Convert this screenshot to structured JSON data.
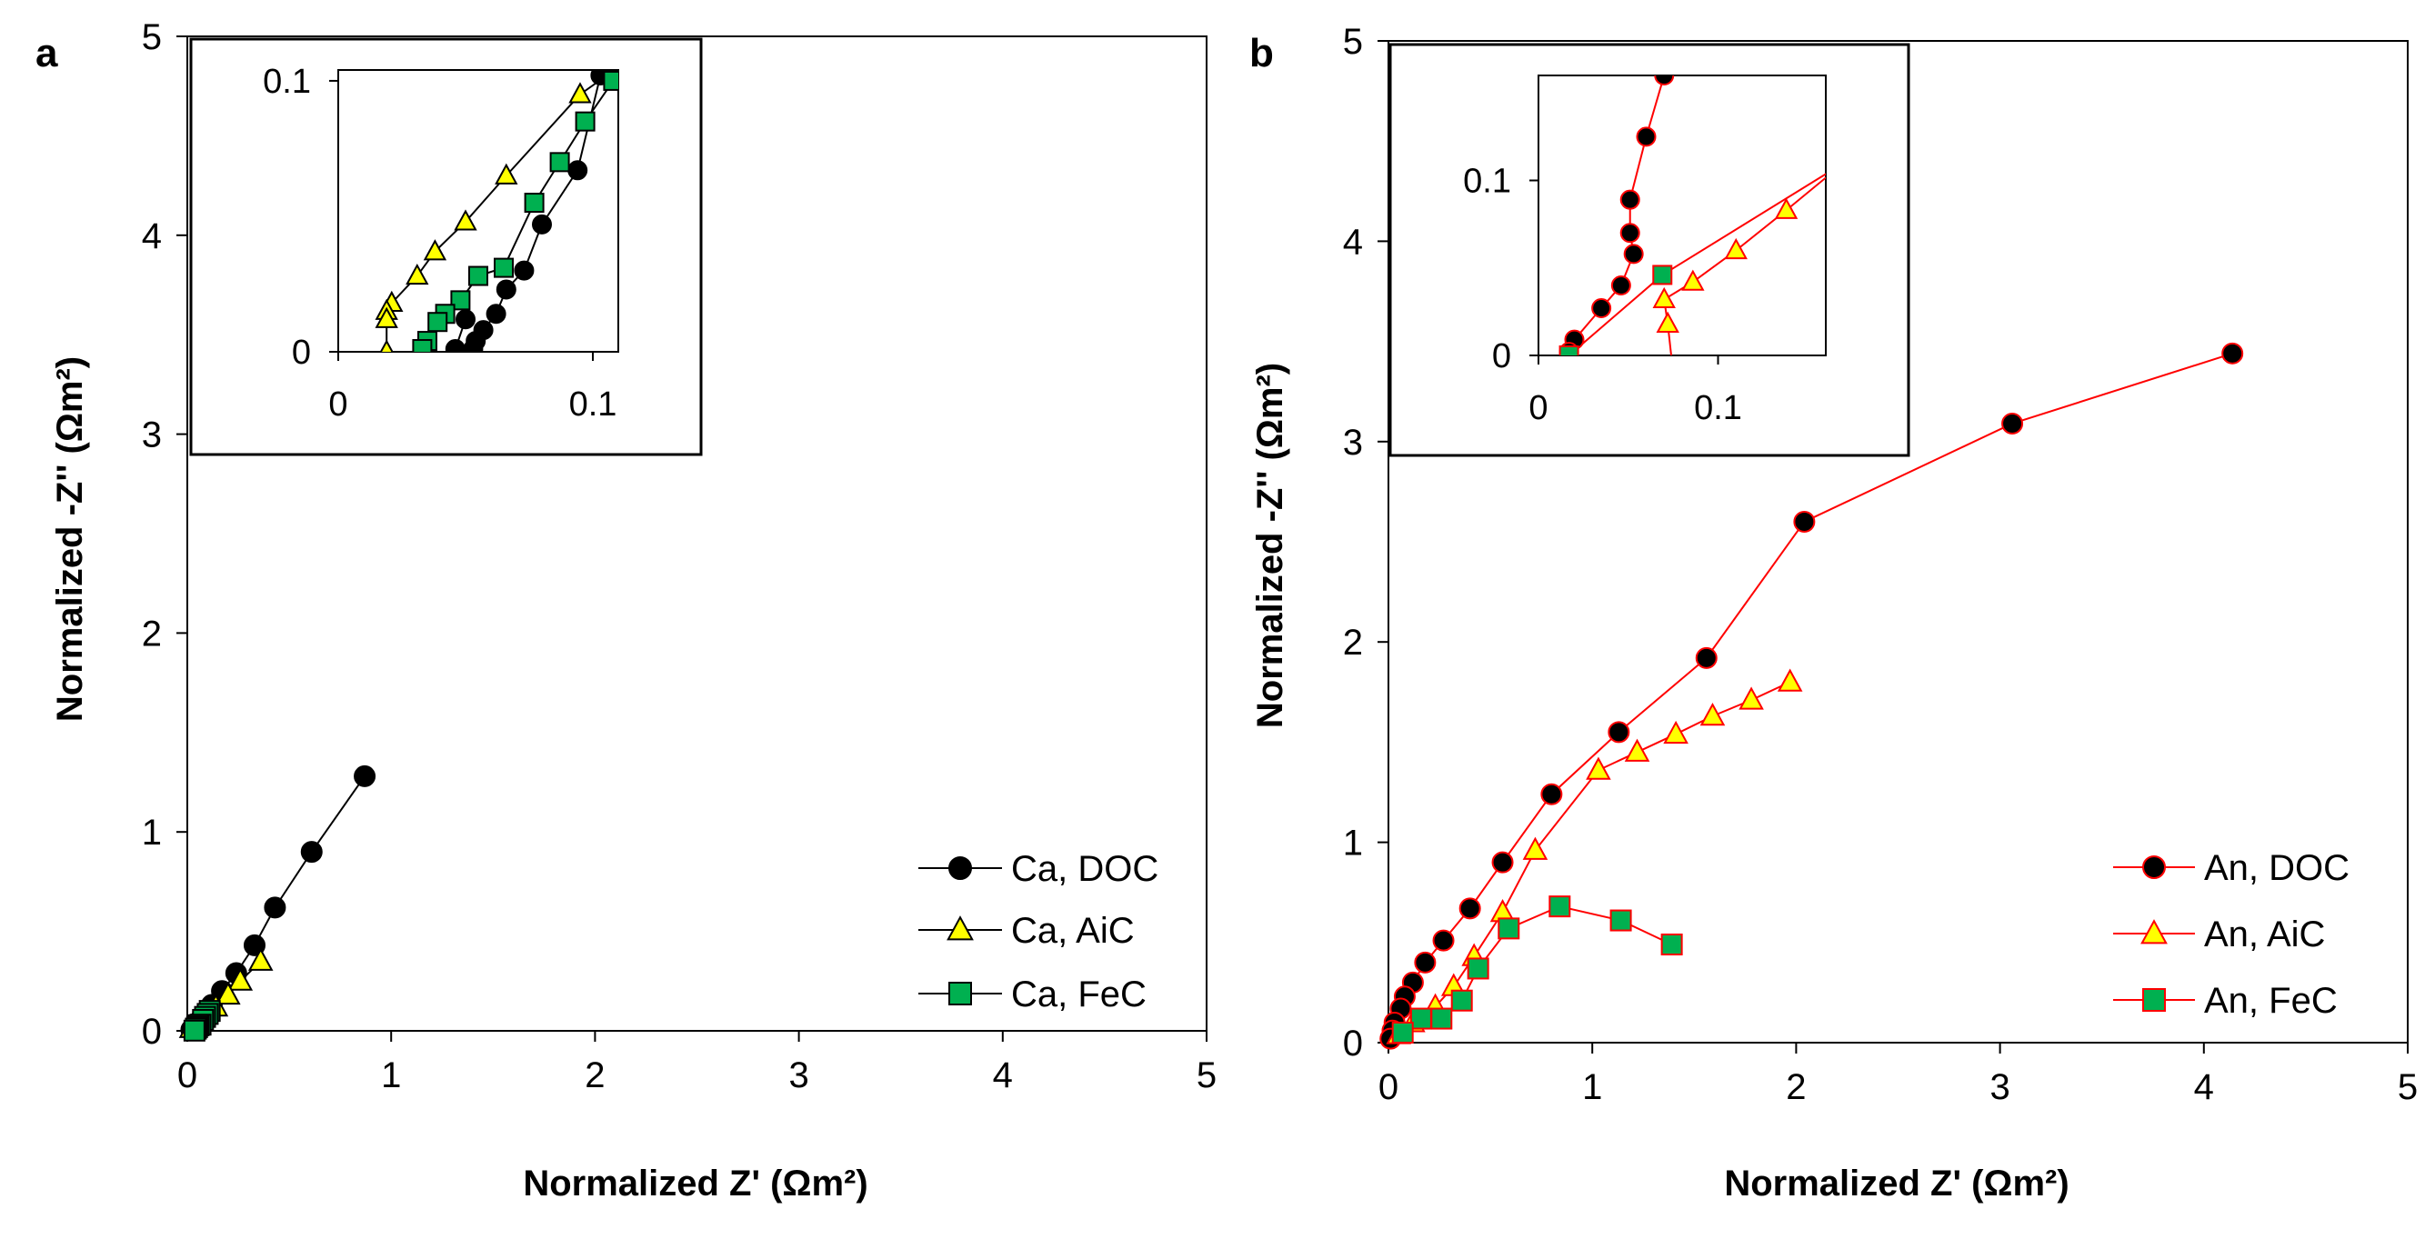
{
  "colors": {
    "black": "#000000",
    "red": "#ff0000",
    "yellow": "#ffff00",
    "green": "#00b050"
  },
  "chart_data": [
    {
      "type": "scatter",
      "panel_label": "a",
      "xlabel": "Normalized Z' (Ωm²)",
      "ylabel": "Normalized -Z'' (Ωm²)",
      "xlim": [
        0,
        5
      ],
      "ylim": [
        0,
        5
      ],
      "xticks": [
        "0",
        "1",
        "2",
        "3",
        "4",
        "5"
      ],
      "yticks": [
        "0",
        "1",
        "2",
        "3",
        "4",
        "5"
      ],
      "legend_position": "bottom-right",
      "series": [
        {
          "name": "Ca, DOC",
          "marker": "circle",
          "line_color": "#000000",
          "fill": "#000000",
          "edge": "#000000",
          "x": [
            0.87,
            0.61,
            0.43,
            0.33,
            0.24,
            0.17,
            0.12,
            0.09,
            0.06,
            0.04,
            0.02
          ],
          "y": [
            1.28,
            0.9,
            0.62,
            0.43,
            0.29,
            0.2,
            0.13,
            0.09,
            0.05,
            0.02,
            0.005
          ]
        },
        {
          "name": "Ca, AiC",
          "marker": "triangle",
          "line_color": "#000000",
          "fill": "#ffff00",
          "edge": "#000000",
          "x": [
            0.36,
            0.26,
            0.2,
            0.14,
            0.1,
            0.07,
            0.05,
            0.03,
            0.02
          ],
          "y": [
            0.35,
            0.25,
            0.18,
            0.12,
            0.095,
            0.065,
            0.04,
            0.02,
            0.012
          ]
        },
        {
          "name": "Ca, FeC",
          "marker": "square",
          "line_color": "#000000",
          "fill": "#00b050",
          "edge": "#000000",
          "x": [
            0.11,
            0.1,
            0.087,
            0.077,
            0.065,
            0.055,
            0.048,
            0.042,
            0.035
          ],
          "y": [
            0.1,
            0.085,
            0.07,
            0.055,
            0.031,
            0.028,
            0.019,
            0.011,
            0.001
          ]
        }
      ],
      "inset": {
        "xlim": [
          0,
          0.11
        ],
        "ylim": [
          0,
          0.104
        ],
        "xticks": [
          "0",
          "0.1"
        ],
        "yticks": [
          "0",
          "0.1"
        ],
        "series": [
          {
            "name": "Ca, DOC",
            "x": [
              0.103,
              0.094,
              0.08,
              0.073,
              0.066,
              0.062,
              0.057,
              0.054,
              0.053,
              0.046,
              0.05
            ],
            "y": [
              0.102,
              0.067,
              0.047,
              0.03,
              0.023,
              0.014,
              0.008,
              0.004,
              0.001,
              0.001,
              0.012
            ]
          },
          {
            "name": "Ca, AiC",
            "x": [
              0.11,
              0.095,
              0.066,
              0.05,
              0.038,
              0.031,
              0.021,
              0.019,
              0.019,
              0.019
            ],
            "y": [
              0.105,
              0.095,
              0.065,
              0.048,
              0.037,
              0.028,
              0.018,
              0.015,
              0.012,
              0.0
            ]
          },
          {
            "name": "Ca, FeC",
            "x": [
              0.108,
              0.097,
              0.087,
              0.077,
              0.065,
              0.055,
              0.048,
              0.042,
              0.039,
              0.035,
              0.033
            ],
            "y": [
              0.1,
              0.085,
              0.07,
              0.055,
              0.031,
              0.028,
              0.019,
              0.014,
              0.011,
              0.004,
              0.001
            ]
          }
        ]
      }
    },
    {
      "type": "scatter",
      "panel_label": "b",
      "xlabel": "Normalized Z' (Ωm²)",
      "ylabel": "Normalized -Z'' (Ωm²)",
      "xlim": [
        0,
        5
      ],
      "ylim": [
        0,
        5
      ],
      "xticks": [
        "0",
        "1",
        "2",
        "3",
        "4",
        "5"
      ],
      "yticks": [
        "0",
        "1",
        "2",
        "3",
        "4",
        "5"
      ],
      "legend_position": "bottom-right",
      "series": [
        {
          "name": "An, DOC",
          "marker": "circle",
          "line_color": "#ff0000",
          "fill": "#000000",
          "edge": "#ff0000",
          "x": [
            4.14,
            3.06,
            2.04,
            1.56,
            1.13,
            0.8,
            0.56,
            0.4,
            0.27,
            0.18,
            0.12,
            0.08,
            0.06,
            0.03,
            0.02,
            0.01
          ],
          "y": [
            3.44,
            3.09,
            2.6,
            1.92,
            1.55,
            1.24,
            0.9,
            0.67,
            0.51,
            0.4,
            0.3,
            0.23,
            0.17,
            0.1,
            0.06,
            0.02
          ]
        },
        {
          "name": "An, AiC",
          "marker": "triangle",
          "line_color": "#ff0000",
          "fill": "#ffff00",
          "edge": "#ff0000",
          "x": [
            1.97,
            1.78,
            1.59,
            1.41,
            1.22,
            1.03,
            0.72,
            0.56,
            0.42,
            0.32,
            0.23,
            0.12,
            0.05
          ],
          "y": [
            1.8,
            1.71,
            1.63,
            1.54,
            1.45,
            1.36,
            0.96,
            0.65,
            0.43,
            0.28,
            0.18,
            0.1,
            0.04
          ]
        },
        {
          "name": "An, FeC",
          "marker": "square",
          "line_color": "#ff0000",
          "fill": "#00b050",
          "edge": "#ff0000",
          "x": [
            1.39,
            1.14,
            0.84,
            0.59,
            0.44,
            0.36,
            0.26,
            0.16,
            0.07
          ],
          "y": [
            0.49,
            0.61,
            0.68,
            0.57,
            0.37,
            0.21,
            0.12,
            0.12,
            0.05
          ]
        }
      ],
      "inset": {
        "xlim": [
          0,
          0.16
        ],
        "ylim": [
          0,
          0.16
        ],
        "xticks": [
          "0",
          "0.1"
        ],
        "yticks": [
          "0",
          "0.1"
        ],
        "series": [
          {
            "name": "An, DOC",
            "x": [
              0.07,
              0.06,
              0.051,
              0.051,
              0.053,
              0.046,
              0.035,
              0.02,
              0.017
            ],
            "y": [
              0.16,
              0.125,
              0.089,
              0.07,
              0.058,
              0.04,
              0.027,
              0.009,
              0.002
            ]
          },
          {
            "name": "An, AiC",
            "x": [
              0.17,
              0.138,
              0.11,
              0.086,
              0.07,
              0.072,
              0.075
            ],
            "y": [
              0.11,
              0.083,
              0.06,
              0.042,
              0.032,
              0.018,
              -0.01
            ]
          },
          {
            "name": "An, FeC",
            "x": [
              0.17,
              0.069,
              0.017
            ],
            "y": [
              0.11,
              0.046,
              0.0
            ]
          }
        ]
      }
    }
  ]
}
